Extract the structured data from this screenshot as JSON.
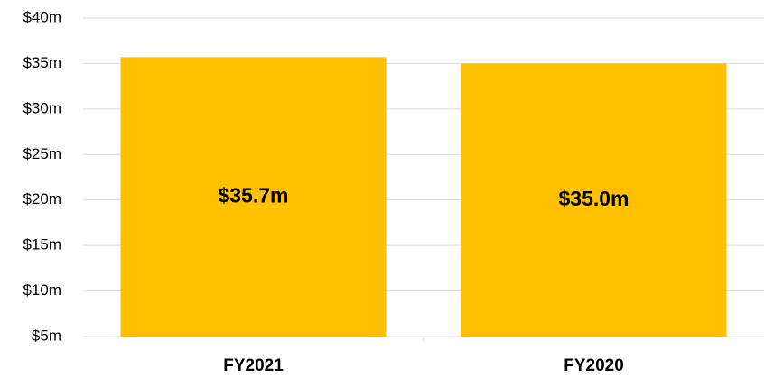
{
  "chart_data": {
    "type": "bar",
    "categories": [
      "FY2021",
      "FY2020"
    ],
    "values": [
      35.7,
      35.0
    ],
    "value_labels": [
      "$35.7m",
      "$35.0m"
    ],
    "color": "#ffc000",
    "ylim": [
      5,
      40
    ],
    "yticks": [
      {
        "value": 5,
        "label": "$5m"
      },
      {
        "value": 10,
        "label": "$10m"
      },
      {
        "value": 15,
        "label": "$15m"
      },
      {
        "value": 20,
        "label": "$20m"
      },
      {
        "value": 25,
        "label": "$25m"
      },
      {
        "value": 30,
        "label": "$30m"
      },
      {
        "value": 35,
        "label": "$35m"
      },
      {
        "value": 40,
        "label": "$40m"
      }
    ],
    "grid": true
  }
}
